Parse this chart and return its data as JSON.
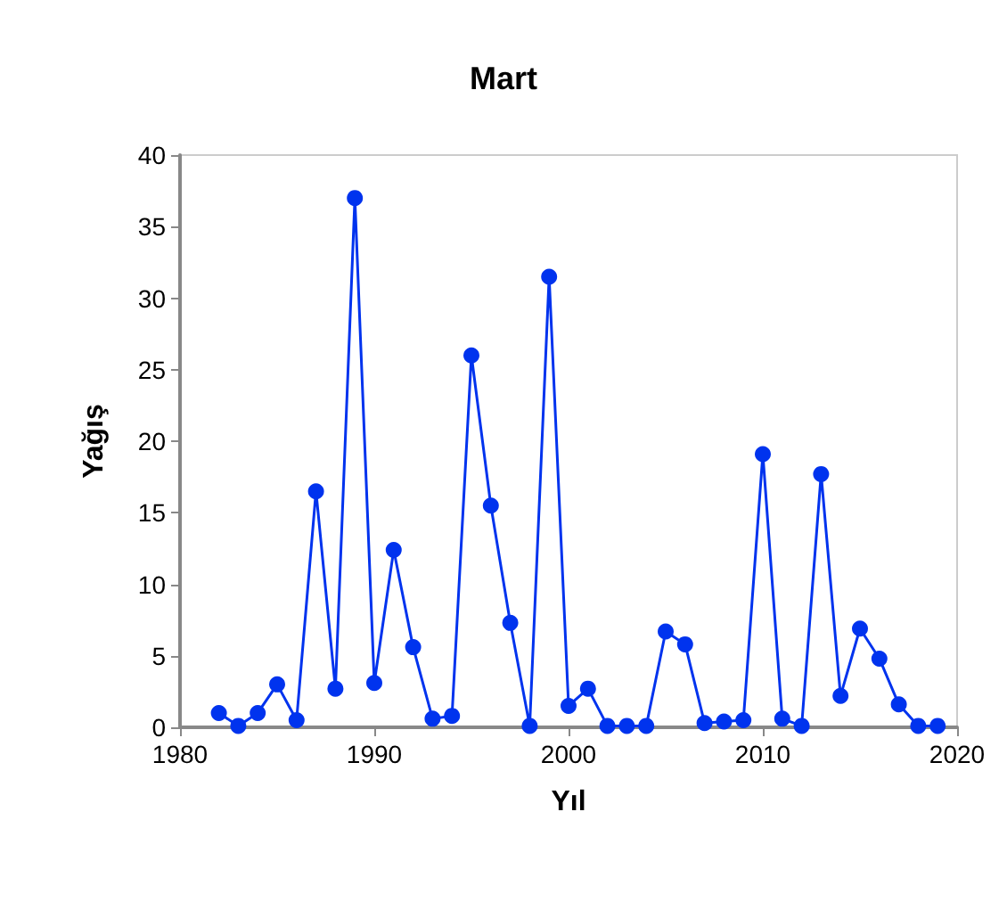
{
  "chart_data": {
    "type": "line",
    "title": "Mart",
    "xlabel": "Yıl",
    "ylabel": "Yağış",
    "x": [
      1982,
      1983,
      1984,
      1985,
      1986,
      1987,
      1988,
      1989,
      1990,
      1991,
      1992,
      1993,
      1994,
      1995,
      1996,
      1997,
      1998,
      1999,
      2000,
      2001,
      2002,
      2003,
      2004,
      2005,
      2006,
      2007,
      2008,
      2009,
      2010,
      2011,
      2012,
      2013,
      2014,
      2015,
      2016,
      2017,
      2018,
      2019
    ],
    "series": [
      {
        "color": "#0033ee",
        "values": [
          1.0,
          0.1,
          1.0,
          3.0,
          0.5,
          16.5,
          2.7,
          37.0,
          3.1,
          12.4,
          5.6,
          0.6,
          0.8,
          26.0,
          15.5,
          7.3,
          0.1,
          31.5,
          1.5,
          2.7,
          0.1,
          0.1,
          0.1,
          6.7,
          5.8,
          0.3,
          0.4,
          0.5,
          19.1,
          0.6,
          0.1,
          17.7,
          2.2,
          6.9,
          4.8,
          1.6,
          0.1,
          0.1
        ]
      }
    ],
    "xlim": [
      1980,
      2020
    ],
    "xticks": [
      1980,
      1990,
      2000,
      2010,
      2020
    ],
    "ylim": [
      0,
      40
    ],
    "yticks": [
      0,
      5,
      10,
      15,
      20,
      25,
      30,
      35,
      40
    ],
    "grid": false,
    "marker": "circle",
    "line_style": "solid"
  }
}
